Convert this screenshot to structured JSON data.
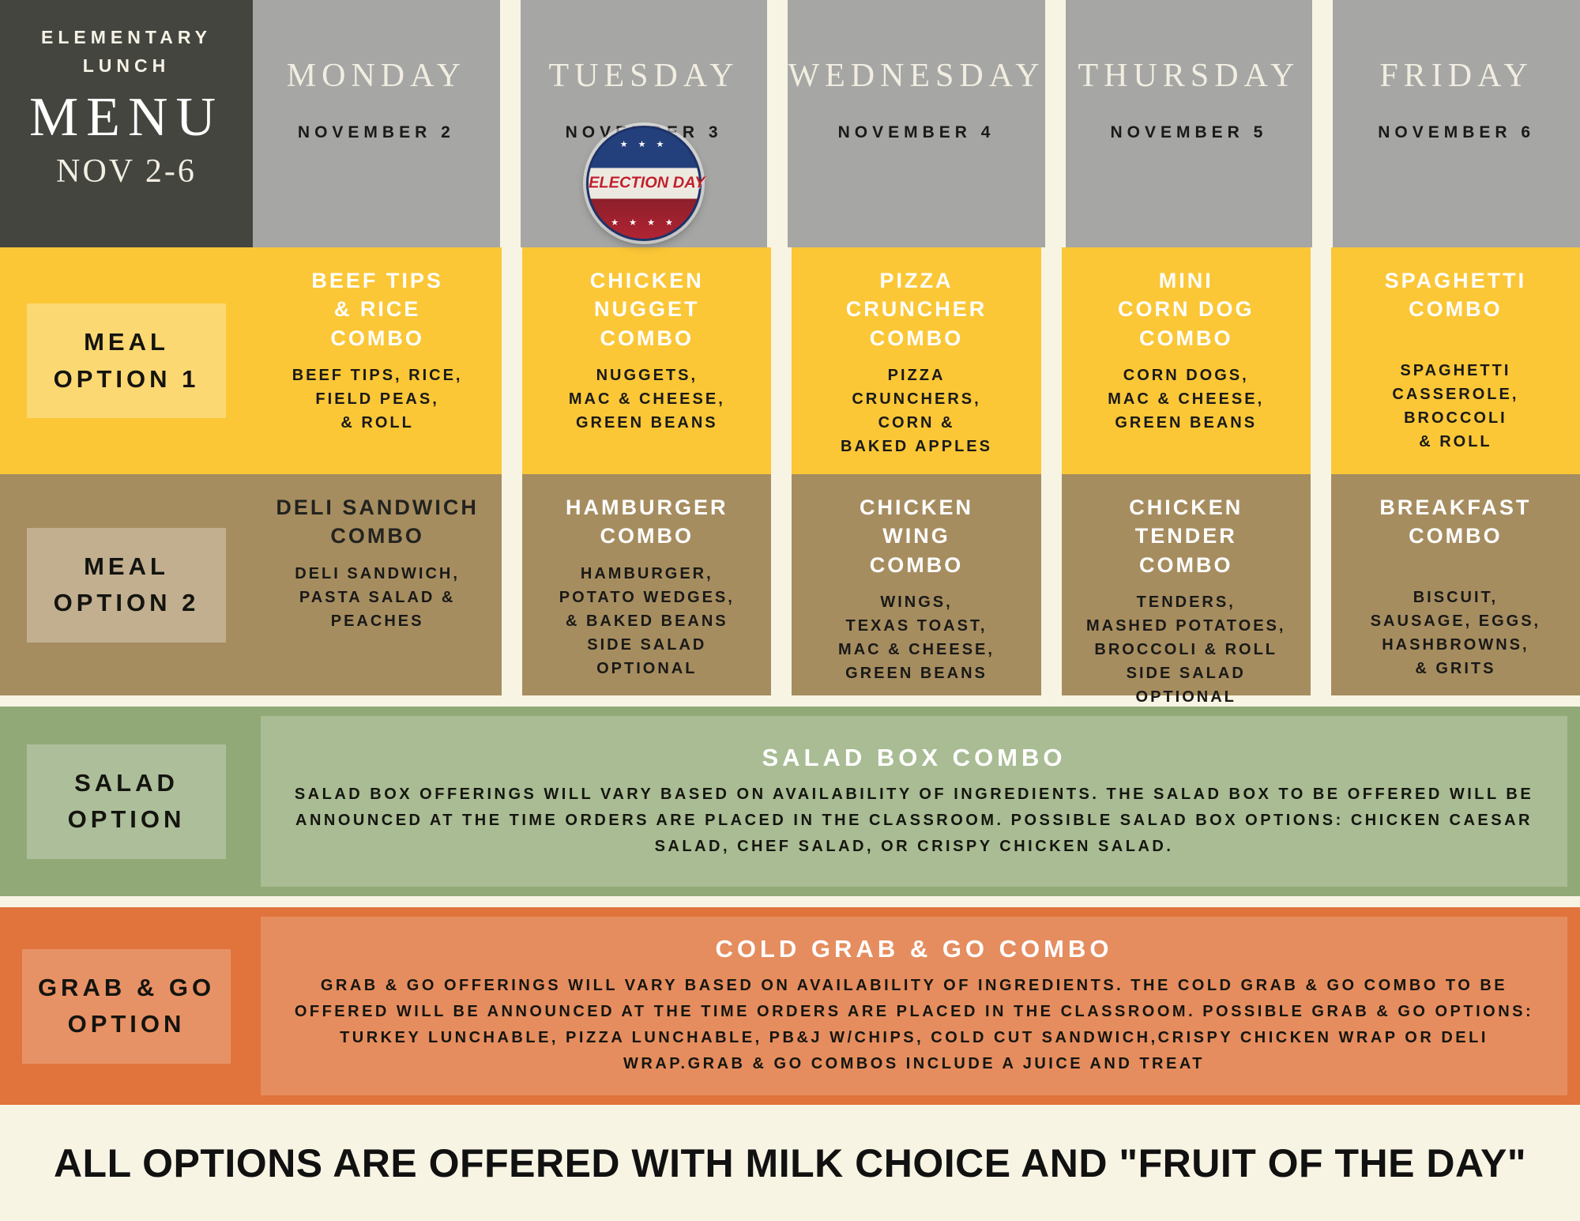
{
  "colors": {
    "cream_background": "#f8f4e4",
    "brand_box": "#454540",
    "header_gray": "#a6a6a4",
    "meal1_yellow": "#fbc737",
    "meal2_tan": "#a68d60",
    "salad_green": "#91a977",
    "grabgo_orange": "#e0743c",
    "badge_blue": "#24407c",
    "badge_red": "#b02433"
  },
  "title_block": {
    "school_line": "ELEMENTARY\nLUNCH",
    "menu": "MENU",
    "date_range": "NOV 2-6"
  },
  "days": [
    {
      "name": "MONDAY",
      "date": "NOVEMBER 2"
    },
    {
      "name": "TUESDAY",
      "date": "NOVEMBER 3"
    },
    {
      "name": "WEDNESDAY",
      "date": "NOVEMBER 4"
    },
    {
      "name": "THURSDAY",
      "date": "NOVEMBER 5"
    },
    {
      "name": "FRIDAY",
      "date": "NOVEMBER 6"
    }
  ],
  "election_badge": {
    "text": "ELECTION DAY",
    "stars_top": "★ ★ ★",
    "stars_bottom": "★ ★ ★ ★"
  },
  "meal1": {
    "label": "MEAL\nOPTION 1",
    "items": [
      {
        "title": "BEEF TIPS\n& RICE\nCOMBO",
        "details": "BEEF TIPS, RICE,\nFIELD PEAS,\n& ROLL"
      },
      {
        "title": "CHICKEN\nNUGGET\nCOMBO",
        "details": "NUGGETS,\nMAC & CHEESE,\nGREEN BEANS"
      },
      {
        "title": "PIZZA\nCRUNCHER\nCOMBO",
        "details": "PIZZA\nCRUNCHERS,\nCORN &\nBAKED APPLES"
      },
      {
        "title": "MINI\nCORN DOG\nCOMBO",
        "details": "CORN DOGS,\nMAC & CHEESE,\nGREEN BEANS"
      },
      {
        "title": "SPAGHETTI\nCOMBO",
        "details": "\nSPAGHETTI\nCASSEROLE,\nBROCCOLI\n& ROLL"
      }
    ]
  },
  "meal2": {
    "label": "MEAL\nOPTION 2",
    "items": [
      {
        "title": "DELI SANDWICH\nCOMBO",
        "details": "DELI SANDWICH,\nPASTA SALAD &\nPEACHES"
      },
      {
        "title": "HAMBURGER\nCOMBO",
        "details": "HAMBURGER,\nPOTATO WEDGES,\n& BAKED  BEANS\nSIDE SALAD\nOPTIONAL"
      },
      {
        "title": "CHICKEN\nWING\nCOMBO",
        "details": "WINGS,\nTEXAS TOAST,\nMAC & CHEESE,\nGREEN BEANS"
      },
      {
        "title": "CHICKEN\nTENDER\nCOMBO",
        "details": "TENDERS,\nMASHED POTATOES,\nBROCCOLI & ROLL\nSIDE SALAD\nOPTIONAL"
      },
      {
        "title": "BREAKFAST\nCOMBO",
        "details": "\nBISCUIT,\nSAUSAGE, EGGS,\nHASHBROWNS,\n& GRITS"
      }
    ]
  },
  "salad": {
    "label": "SALAD\nOPTION",
    "title": "SALAD BOX COMBO",
    "body": "SALAD BOX OFFERINGS WILL VARY BASED ON AVAILABILITY OF INGREDIENTS.  THE SALAD BOX TO BE OFFERED WILL BE ANNOUNCED AT THE TIME ORDERS ARE PLACED IN THE CLASSROOM.  POSSIBLE SALAD BOX OPTIONS:  CHICKEN CAESAR SALAD, CHEF SALAD, OR CRISPY CHICKEN SALAD."
  },
  "grabgo": {
    "label": "GRAB & GO\nOPTION",
    "title": "COLD GRAB & GO COMBO",
    "body": "GRAB & GO OFFERINGS WILL VARY BASED ON AVAILABILITY OF INGREDIENTS.  THE COLD GRAB & GO COMBO TO BE OFFERED WILL BE ANNOUNCED AT THE TIME ORDERS ARE PLACED IN THE CLASSROOM.  POSSIBLE GRAB & GO OPTIONS:  TURKEY LUNCHABLE, PIZZA LUNCHABLE, PB&J W/CHIPS, COLD CUT SANDWICH,CRISPY CHICKEN WRAP OR DELI WRAP.GRAB & GO COMBOS INCLUDE A JUICE AND TREAT"
  },
  "footer": {
    "note": "ALL OPTIONS ARE OFFERED WITH MILK CHOICE AND \"FRUIT OF THE DAY\""
  }
}
